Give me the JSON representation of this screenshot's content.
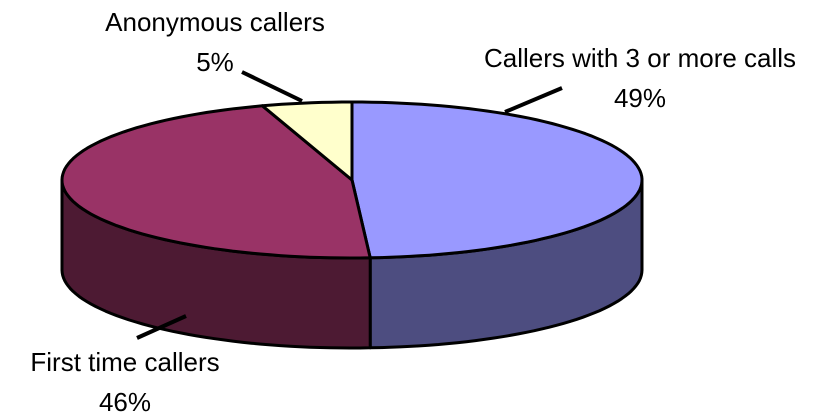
{
  "chart_data": {
    "type": "pie3d",
    "categories": [
      "Callers with 3 or more calls",
      "First time callers",
      "Anonymous callers"
    ],
    "values": [
      49,
      46,
      5
    ],
    "value_labels": [
      "49%",
      "46%",
      "5%"
    ],
    "colors": [
      "#9999ff",
      "#993366",
      "#ffffcc"
    ]
  }
}
